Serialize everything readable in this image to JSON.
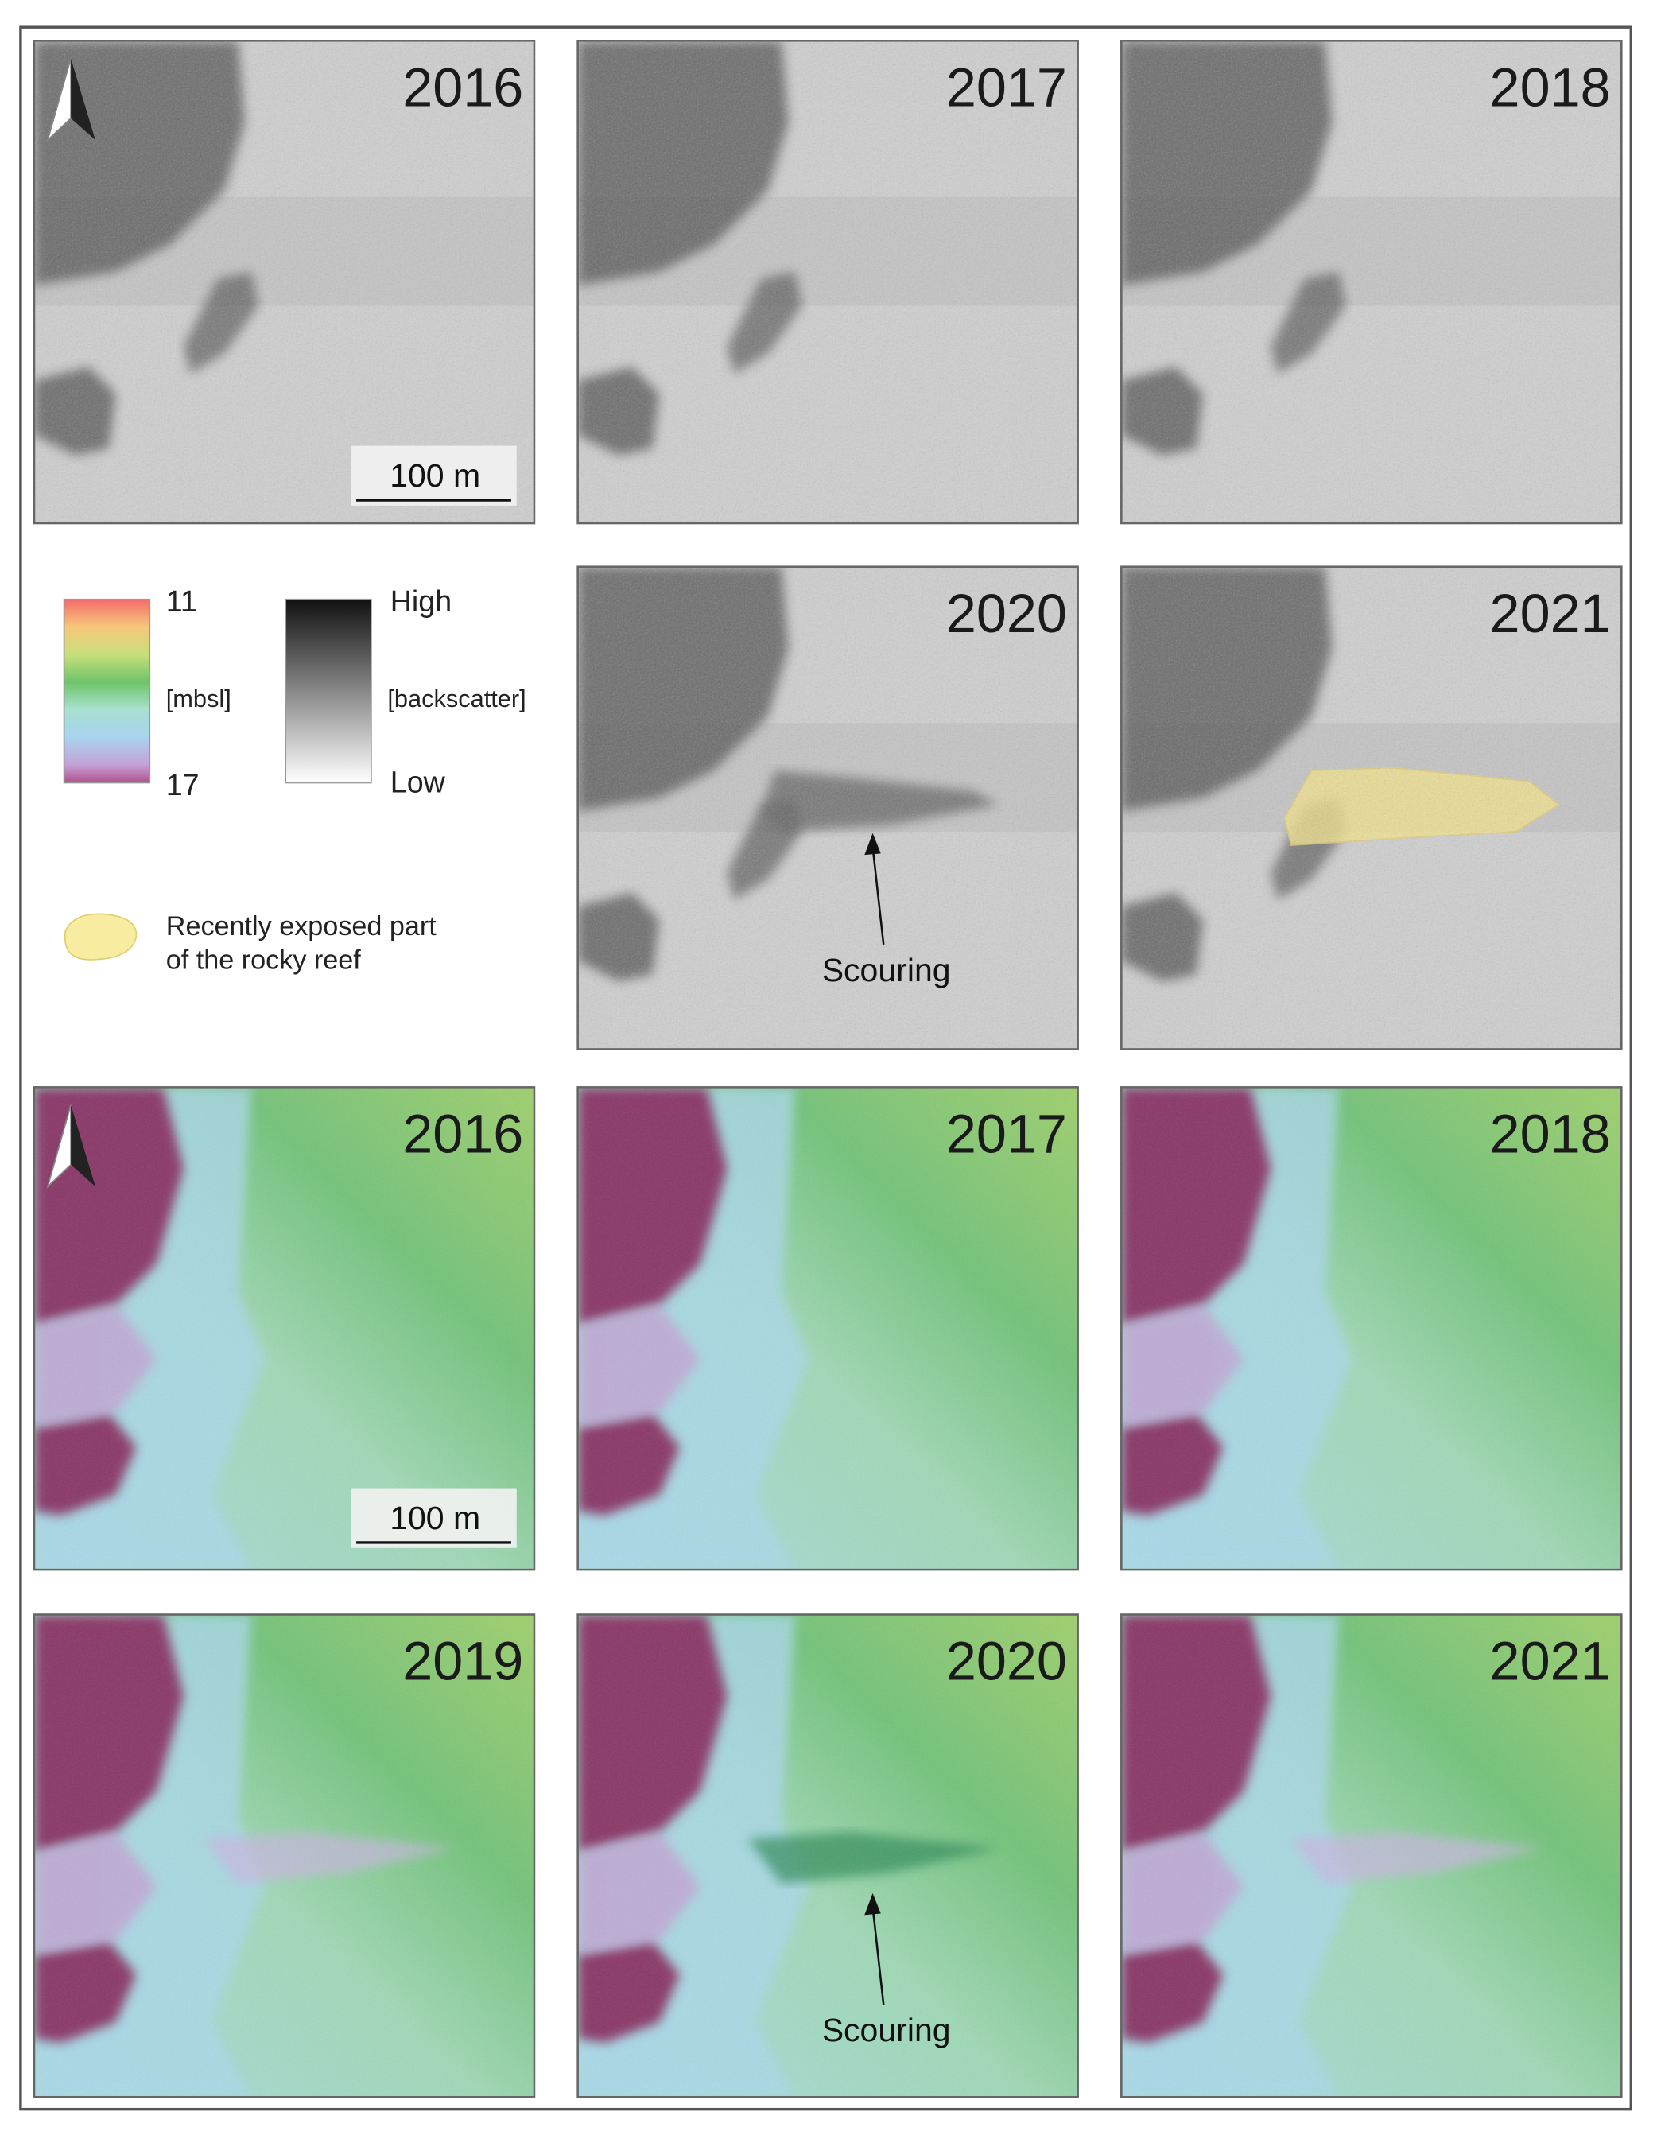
{
  "backscatter": {
    "panels": [
      "2016",
      "2017",
      "2018",
      "2020",
      "2021"
    ],
    "scale_bar": "100 m",
    "annotation": "Scouring"
  },
  "bathymetry": {
    "panels": [
      "2016",
      "2017",
      "2018",
      "2019",
      "2020",
      "2021"
    ],
    "scale_bar": "100 m",
    "annotation": "Scouring"
  },
  "legend": {
    "depth": {
      "top": "11",
      "unit": "[mbsl]",
      "bottom": "17"
    },
    "backscatter": {
      "top": "High",
      "unit": "[backscatter]",
      "bottom": "Low"
    },
    "exposed_reef": [
      "Recently exposed part",
      "of the rocky reef"
    ]
  }
}
